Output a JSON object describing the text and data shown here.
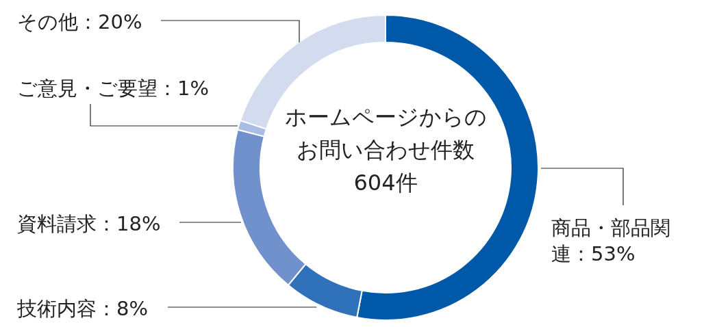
{
  "chart_data": {
    "type": "donut",
    "categories": [
      "商品・部品関連",
      "技術内容",
      "資料請求",
      "ご意見・ご要望",
      "その他"
    ],
    "values": [
      53,
      8,
      18,
      1,
      20
    ],
    "value_labels": [
      "53%",
      "8%",
      "18%",
      "1%",
      "20%"
    ],
    "colors": [
      "#0058a8",
      "#2f72ba",
      "#7191cc",
      "#a9bce3",
      "#d3dcef"
    ],
    "annotations": [
      "ホームページからの",
      "お問い合わせ件数",
      "604件"
    ]
  }
}
